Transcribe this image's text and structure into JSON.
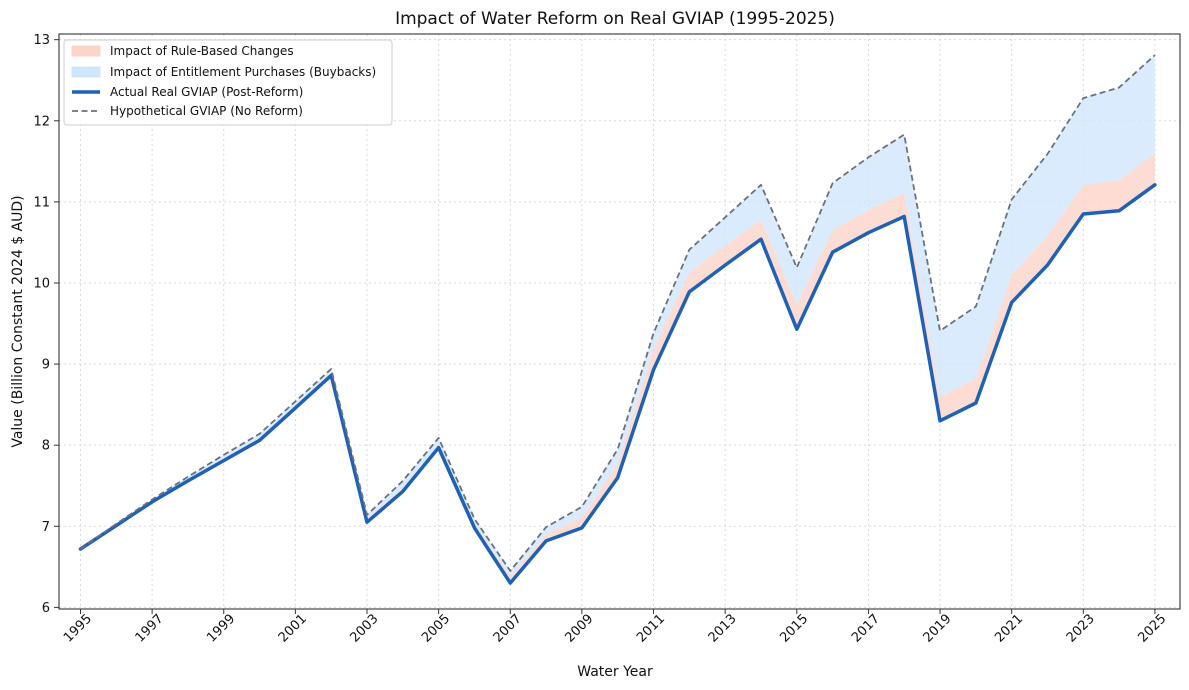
{
  "chart_data": {
    "type": "area",
    "title": "Impact of Water Reform on Real GVIAP (1995-2025)",
    "xlabel": "Water Year",
    "ylabel": "Value (Billion Constant 2024 $ AUD)",
    "xlim": [
      1994.4,
      2025.7
    ],
    "ylim": [
      5.98,
      13.07
    ],
    "x_ticks": [
      1995,
      1997,
      1999,
      2001,
      2003,
      2005,
      2007,
      2009,
      2011,
      2013,
      2015,
      2017,
      2019,
      2021,
      2023,
      2025
    ],
    "y_ticks": [
      6,
      7,
      8,
      9,
      10,
      11,
      12,
      13
    ],
    "grid": true,
    "legend_position": "upper-left",
    "x": [
      1995,
      1996,
      1997,
      1998,
      1999,
      2000,
      2001,
      2002,
      2003,
      2004,
      2005,
      2006,
      2007,
      2008,
      2009,
      2010,
      2011,
      2012,
      2013,
      2014,
      2015,
      2016,
      2017,
      2018,
      2019,
      2020,
      2021,
      2022,
      2023,
      2024,
      2025
    ],
    "series": [
      {
        "name": "Impact of Rule-Based Changes",
        "kind": "band",
        "color": "#fcd5c8",
        "lower": [
          6.72,
          7.01,
          7.3,
          7.56,
          7.81,
          8.06,
          8.46,
          8.86,
          7.05,
          7.43,
          7.97,
          6.98,
          6.3,
          6.82,
          6.98,
          7.6,
          8.93,
          9.89,
          10.22,
          10.54,
          9.43,
          10.38,
          10.62,
          10.82,
          8.3,
          8.52,
          9.76,
          10.22,
          10.85,
          10.89,
          11.21
        ],
        "upper": [
          6.72,
          7.02,
          7.31,
          7.58,
          7.84,
          8.09,
          8.49,
          8.89,
          7.09,
          7.47,
          8.01,
          7.02,
          6.38,
          6.9,
          7.11,
          7.78,
          9.19,
          10.13,
          10.46,
          10.78,
          9.73,
          10.65,
          10.9,
          11.11,
          8.6,
          8.82,
          10.1,
          10.58,
          11.21,
          11.27,
          11.6
        ]
      },
      {
        "name": "Impact of Entitlement Purchases (Buybacks)",
        "kind": "band",
        "color": "#cfe6fb",
        "lower": [
          6.72,
          7.02,
          7.31,
          7.58,
          7.84,
          8.09,
          8.49,
          8.89,
          7.09,
          7.47,
          8.01,
          7.02,
          6.38,
          6.9,
          7.11,
          7.78,
          9.19,
          10.13,
          10.46,
          10.78,
          9.73,
          10.65,
          10.9,
          11.11,
          8.6,
          8.82,
          10.1,
          10.58,
          11.21,
          11.27,
          11.6
        ],
        "upper": [
          6.72,
          7.03,
          7.33,
          7.61,
          7.88,
          8.14,
          8.54,
          8.94,
          7.14,
          7.56,
          8.09,
          7.09,
          6.45,
          6.99,
          7.24,
          7.95,
          9.38,
          10.41,
          10.81,
          11.21,
          10.19,
          11.23,
          11.55,
          11.83,
          9.41,
          9.71,
          11.03,
          11.59,
          12.28,
          12.41,
          12.81
        ]
      },
      {
        "name": "Actual Real GVIAP (Post-Reform)",
        "kind": "line",
        "color": "#1f62b5",
        "values": [
          6.72,
          7.01,
          7.3,
          7.56,
          7.81,
          8.06,
          8.46,
          8.86,
          7.05,
          7.43,
          7.97,
          6.98,
          6.3,
          6.82,
          6.98,
          7.6,
          8.93,
          9.89,
          10.22,
          10.54,
          9.43,
          10.38,
          10.62,
          10.82,
          8.3,
          8.52,
          9.76,
          10.22,
          10.85,
          10.89,
          11.21
        ]
      },
      {
        "name": "Hypothetical GVIAP (No Reform)",
        "kind": "dashed-line",
        "color": "#6b717c",
        "values": [
          6.72,
          7.03,
          7.33,
          7.61,
          7.88,
          8.14,
          8.54,
          8.94,
          7.14,
          7.56,
          8.09,
          7.09,
          6.45,
          6.99,
          7.24,
          7.95,
          9.38,
          10.41,
          10.81,
          11.21,
          10.19,
          11.23,
          11.55,
          11.83,
          9.41,
          9.71,
          11.03,
          11.59,
          12.28,
          12.41,
          12.81
        ]
      }
    ]
  }
}
